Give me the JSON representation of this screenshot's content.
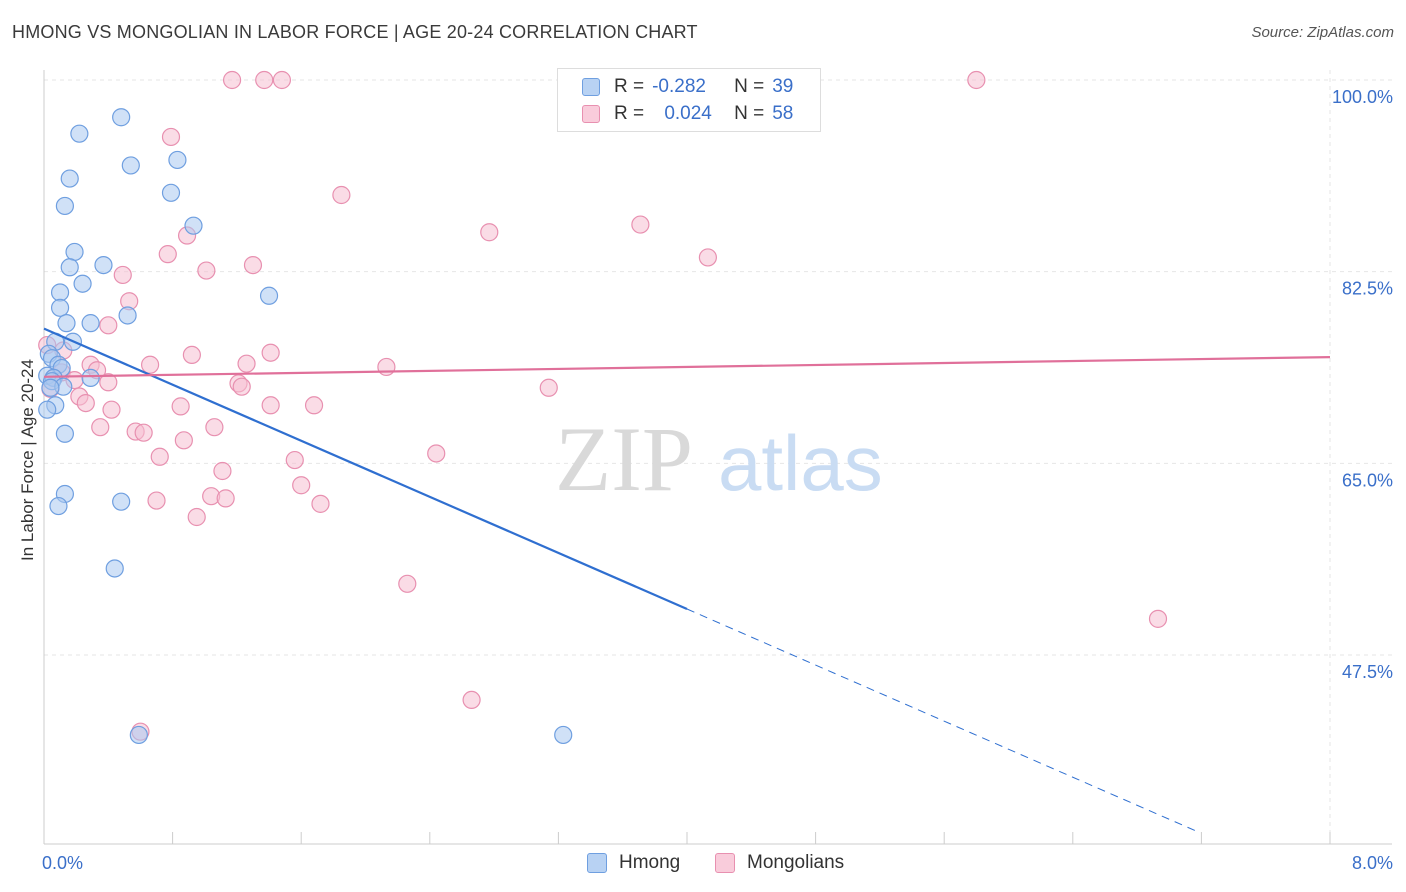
{
  "title": "HMONG VS MONGOLIAN IN LABOR FORCE | AGE 20-24 CORRELATION CHART",
  "source": "Source: ZipAtlas.com",
  "watermark": {
    "zip": "ZIP",
    "atlas": "atlas"
  },
  "legend": {
    "r_label": "R =",
    "n_label": "N =",
    "hmong": {
      "r": "-0.282",
      "n": "39"
    },
    "mongolians": {
      "r": "0.024",
      "n": "58"
    }
  },
  "colors": {
    "hmong_fill": "#a9c8f0",
    "hmong_stroke": "#6f9fe0",
    "hmong_line": "#2f6fd0",
    "mongolians_fill": "#f6bfd1",
    "mongolians_stroke": "#e890b0",
    "mongolians_line": "#e0709a",
    "tick_label": "#3a6fc9",
    "grid": "#e6e6e6"
  },
  "chart_data": {
    "type": "scatter",
    "title": "HMONG VS MONGOLIAN IN LABOR FORCE | AGE 20-24 CORRELATION CHART",
    "xlabel": "",
    "ylabel": "In Labor Force | Age 20-24",
    "xlim": [
      0.0,
      8.0
    ],
    "ylim": [
      30.0,
      101.5
    ],
    "x_tick_labels": {
      "left": "0.0%",
      "right": "8.0%"
    },
    "y_ticks": [
      {
        "value": 100.0,
        "label": "100.0%"
      },
      {
        "value": 82.5,
        "label": "82.5%"
      },
      {
        "value": 65.0,
        "label": "65.0%"
      },
      {
        "value": 47.5,
        "label": "47.5%"
      }
    ],
    "grid": true,
    "legend_entries": [
      "Hmong",
      "Mongolians"
    ],
    "series": [
      {
        "name": "Hmong",
        "points": [
          [
            0.22,
            95.1
          ],
          [
            0.48,
            96.6
          ],
          [
            0.83,
            92.7
          ],
          [
            0.54,
            92.2
          ],
          [
            0.16,
            91.0
          ],
          [
            0.79,
            89.7
          ],
          [
            0.13,
            88.5
          ],
          [
            0.93,
            86.7
          ],
          [
            0.19,
            84.3
          ],
          [
            0.37,
            83.1
          ],
          [
            0.16,
            82.9
          ],
          [
            0.24,
            81.4
          ],
          [
            0.1,
            80.6
          ],
          [
            1.4,
            80.3
          ],
          [
            0.1,
            79.2
          ],
          [
            0.52,
            78.5
          ],
          [
            0.14,
            77.8
          ],
          [
            0.29,
            77.8
          ],
          [
            0.07,
            76.1
          ],
          [
            0.18,
            76.1
          ],
          [
            0.03,
            75.0
          ],
          [
            0.05,
            74.6
          ],
          [
            0.09,
            74.0
          ],
          [
            0.11,
            73.7
          ],
          [
            0.02,
            73.0
          ],
          [
            0.06,
            72.8
          ],
          [
            0.29,
            72.8
          ],
          [
            0.05,
            72.5
          ],
          [
            0.12,
            72.0
          ],
          [
            0.04,
            71.9
          ],
          [
            0.07,
            70.3
          ],
          [
            0.02,
            69.9
          ],
          [
            0.13,
            67.7
          ],
          [
            0.13,
            62.2
          ],
          [
            0.09,
            61.1
          ],
          [
            0.48,
            61.5
          ],
          [
            0.44,
            55.4
          ],
          [
            0.59,
            40.2
          ],
          [
            3.23,
            40.2
          ]
        ]
      },
      {
        "name": "Mongolians",
        "points": [
          [
            1.17,
            100.0
          ],
          [
            1.37,
            100.0
          ],
          [
            1.48,
            100.0
          ],
          [
            5.8,
            100.0
          ],
          [
            0.79,
            94.8
          ],
          [
            1.85,
            89.5
          ],
          [
            3.71,
            86.8
          ],
          [
            2.77,
            86.1
          ],
          [
            0.89,
            85.8
          ],
          [
            0.77,
            84.1
          ],
          [
            4.13,
            83.8
          ],
          [
            1.3,
            83.1
          ],
          [
            1.01,
            82.6
          ],
          [
            0.49,
            82.2
          ],
          [
            0.53,
            79.8
          ],
          [
            0.4,
            77.6
          ],
          [
            0.02,
            75.8
          ],
          [
            0.12,
            75.3
          ],
          [
            0.92,
            74.9
          ],
          [
            1.41,
            75.1
          ],
          [
            0.66,
            74.0
          ],
          [
            1.26,
            74.1
          ],
          [
            2.13,
            73.8
          ],
          [
            0.29,
            74.0
          ],
          [
            0.33,
            73.5
          ],
          [
            0.11,
            73.3
          ],
          [
            0.06,
            72.8
          ],
          [
            0.19,
            72.6
          ],
          [
            0.4,
            72.4
          ],
          [
            1.21,
            72.3
          ],
          [
            1.23,
            72.0
          ],
          [
            3.14,
            71.9
          ],
          [
            0.04,
            71.8
          ],
          [
            0.22,
            71.1
          ],
          [
            0.26,
            70.5
          ],
          [
            0.85,
            70.2
          ],
          [
            1.41,
            70.3
          ],
          [
            1.68,
            70.3
          ],
          [
            0.42,
            69.9
          ],
          [
            0.35,
            68.3
          ],
          [
            1.06,
            68.3
          ],
          [
            0.57,
            67.9
          ],
          [
            0.62,
            67.8
          ],
          [
            0.87,
            67.1
          ],
          [
            0.72,
            65.6
          ],
          [
            2.44,
            65.9
          ],
          [
            1.56,
            65.3
          ],
          [
            1.11,
            64.3
          ],
          [
            1.6,
            63.0
          ],
          [
            1.04,
            62.0
          ],
          [
            1.13,
            61.8
          ],
          [
            0.7,
            61.6
          ],
          [
            1.72,
            61.3
          ],
          [
            0.95,
            60.1
          ],
          [
            2.26,
            54.0
          ],
          [
            6.93,
            50.8
          ],
          [
            2.66,
            43.4
          ],
          [
            0.6,
            40.5
          ]
        ]
      }
    ],
    "trend_lines": [
      {
        "name": "Hmong",
        "x": [
          0.0,
          4.0
        ],
        "y": [
          77.3,
          51.7
        ],
        "dashed_extension_to_x": 7.18
      },
      {
        "name": "Mongolians",
        "x": [
          0.0,
          8.0
        ],
        "y": [
          72.9,
          74.7
        ]
      }
    ]
  }
}
